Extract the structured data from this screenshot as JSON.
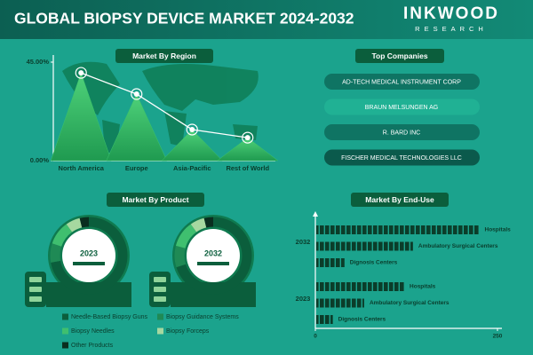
{
  "header": {
    "title": "GLOBAL BIOPSY DEVICE MARKET 2024-2032",
    "logo": "INKWOOD",
    "logo_sub": "RESEARCH"
  },
  "companies": {
    "title": "Top Companies",
    "items": [
      "AD-TECH MEDICAL INSTRUMENT CORP",
      "BRAUN MELSUNGEN AG",
      "R. BARD INC",
      "FISCHER MEDICAL TECHNOLOGIES LLC"
    ]
  },
  "chart_data": [
    {
      "type": "line",
      "title": "Market By Region",
      "categories": [
        "North America",
        "Europe",
        "Asia-Pacific",
        "Rest of World"
      ],
      "values": [
        40.1,
        30.4,
        14.2,
        10.5
      ],
      "color": "#3cc46a",
      "ylim": [
        0,
        45
      ],
      "yticks": [
        {
          "value": 0,
          "label": "0.00%"
        },
        {
          "value": 45,
          "label": "45.00%"
        }
      ]
    },
    {
      "type": "donut",
      "title": "Market By Product",
      "categories": [
        "Needle-Based Biopsy Guns",
        "Biopsy Guidance Systems",
        "Biopsy Needles",
        "Biopsy Forceps",
        "Other Products"
      ],
      "colors": [
        "#0b5e3c",
        "#1f8a55",
        "#3fbf6f",
        "#a6d8a0",
        "#0a2e1f"
      ],
      "series": [
        {
          "name": "2023",
          "values": [
            72,
            8,
            10,
            6,
            4
          ]
        },
        {
          "name": "2032",
          "values": [
            70,
            9,
            11,
            6,
            4
          ]
        }
      ]
    },
    {
      "type": "bar",
      "orientation": "horizontal",
      "title": "Market By End-Use",
      "categories": [
        "Hospitals",
        "Ambulatory Surgical Centers",
        "Dignosis Centers"
      ],
      "color": "#0b3d2a",
      "series": [
        {
          "name": "2032",
          "values": [
            225,
            134,
            40
          ]
        },
        {
          "name": "2023",
          "values": [
            122,
            67,
            24
          ]
        }
      ],
      "xlim": [
        0,
        250
      ],
      "xticks": [
        0,
        250
      ]
    }
  ]
}
